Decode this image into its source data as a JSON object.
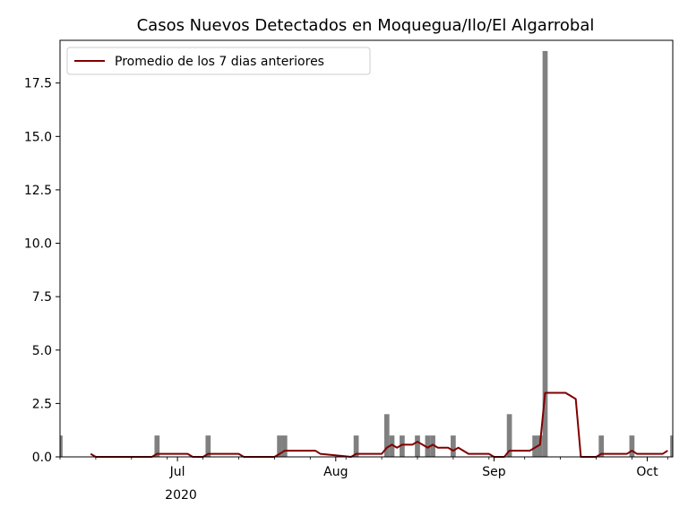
{
  "chart_data": {
    "type": "bar",
    "title": "Casos Nuevos Detectados en Moquegua/Ilo/El Algarrobal",
    "xlabel": "",
    "ylabel": "",
    "ylim": [
      0,
      19.5
    ],
    "x_range": [
      "2020-06-08",
      "2020-10-06"
    ],
    "y_ticks": [
      0.0,
      2.5,
      5.0,
      7.5,
      10.0,
      12.5,
      15.0,
      17.5
    ],
    "y_tick_labels": [
      "0.0",
      "2.5",
      "5.0",
      "7.5",
      "10.0",
      "12.5",
      "15.0",
      "17.5"
    ],
    "x_ticks": [
      "2020-07-01",
      "2020-08-01",
      "2020-09-01",
      "2020-10-01"
    ],
    "x_tick_labels": [
      "Jul",
      "Aug",
      "Sep",
      "Oct"
    ],
    "x_year_label": "2020",
    "grid": false,
    "legend": {
      "position": "upper-left"
    },
    "bar_color": "#808080",
    "bars": {
      "name": "",
      "x": [
        "2020-06-08",
        "2020-06-27",
        "2020-07-07",
        "2020-07-21",
        "2020-07-22",
        "2020-08-05",
        "2020-08-11",
        "2020-08-12",
        "2020-08-14",
        "2020-08-17",
        "2020-08-19",
        "2020-08-20",
        "2020-08-24",
        "2020-09-04",
        "2020-09-09",
        "2020-09-10",
        "2020-09-11",
        "2020-09-22",
        "2020-09-28",
        "2020-10-06"
      ],
      "values": [
        1,
        1,
        1,
        1,
        1,
        1,
        2,
        1,
        1,
        1,
        1,
        1,
        1,
        2,
        1,
        1,
        19,
        1,
        1,
        1
      ]
    },
    "series": [
      {
        "name": "Promedio de los 7 dias anteriores",
        "color": "#800000",
        "x": [
          "2020-06-14",
          "2020-06-15",
          "2020-06-26",
          "2020-06-27",
          "2020-07-03",
          "2020-07-04",
          "2020-07-06",
          "2020-07-07",
          "2020-07-13",
          "2020-07-14",
          "2020-07-20",
          "2020-07-21",
          "2020-07-22",
          "2020-07-28",
          "2020-07-29",
          "2020-08-04",
          "2020-08-05",
          "2020-08-10",
          "2020-08-11",
          "2020-08-12",
          "2020-08-13",
          "2020-08-14",
          "2020-08-16",
          "2020-08-17",
          "2020-08-18",
          "2020-08-19",
          "2020-08-20",
          "2020-08-21",
          "2020-08-23",
          "2020-08-24",
          "2020-08-25",
          "2020-08-27",
          "2020-08-31",
          "2020-09-01",
          "2020-09-03",
          "2020-09-04",
          "2020-09-08",
          "2020-09-09",
          "2020-09-10",
          "2020-09-11",
          "2020-09-15",
          "2020-09-17",
          "2020-09-18",
          "2020-09-21",
          "2020-09-22",
          "2020-09-27",
          "2020-09-28",
          "2020-09-29",
          "2020-10-04",
          "2020-10-05"
        ],
        "values": [
          0.14,
          0.0,
          0.0,
          0.14,
          0.14,
          0.0,
          0.0,
          0.14,
          0.14,
          0.0,
          0.0,
          0.14,
          0.29,
          0.29,
          0.14,
          0.0,
          0.14,
          0.14,
          0.43,
          0.57,
          0.43,
          0.57,
          0.57,
          0.71,
          0.57,
          0.43,
          0.57,
          0.43,
          0.43,
          0.29,
          0.43,
          0.14,
          0.14,
          0.0,
          0.0,
          0.29,
          0.29,
          0.43,
          0.57,
          3.0,
          3.0,
          2.71,
          0.0,
          0.0,
          0.14,
          0.14,
          0.29,
          0.14,
          0.14,
          0.29
        ]
      }
    ]
  }
}
